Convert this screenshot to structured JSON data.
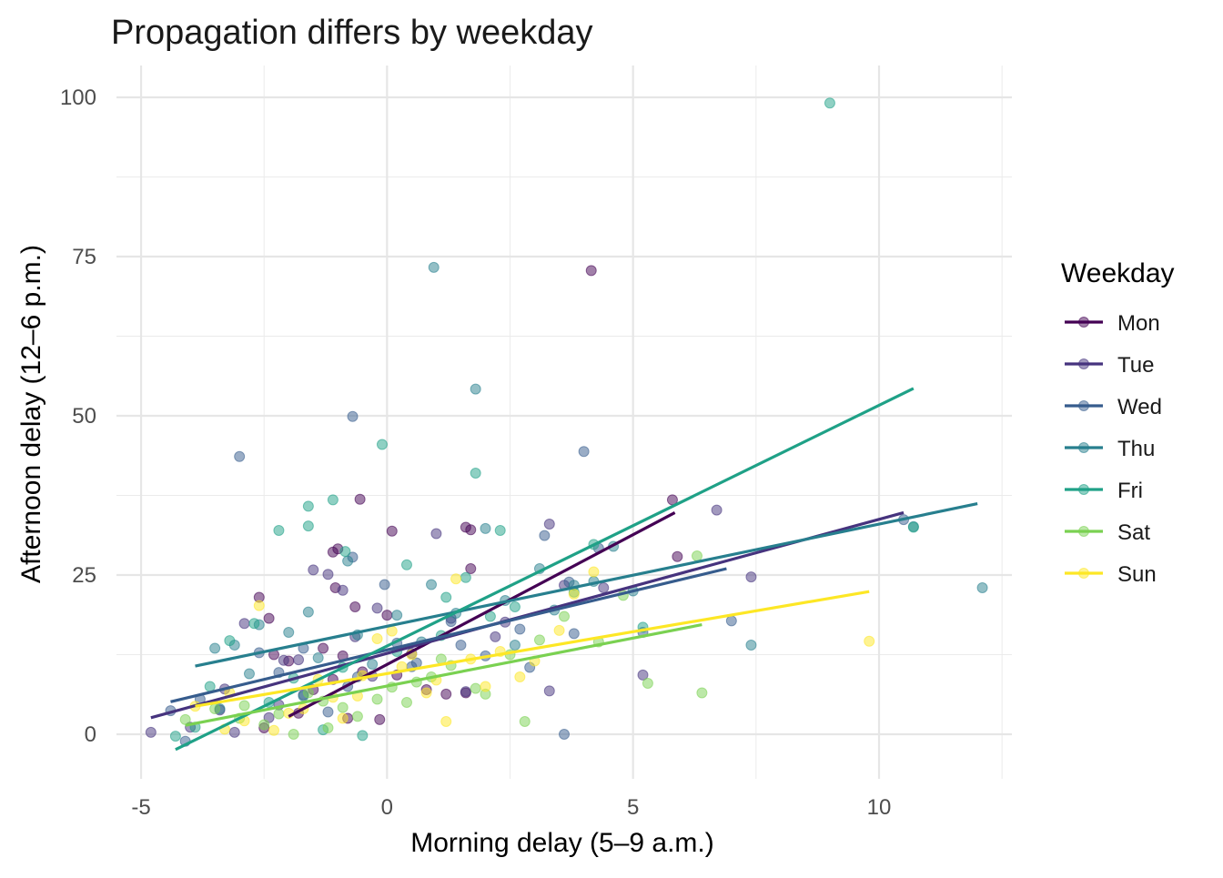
{
  "chart_data": {
    "type": "scatter",
    "title": "Propagation differs by weekday",
    "xlabel": "Morning delay (5–9 a.m.)",
    "ylabel": "Afternoon delay (12–6 p.m.)",
    "xlim": [
      -5.5,
      12.7
    ],
    "ylim": [
      -7,
      105
    ],
    "x_ticks": [
      -5,
      0,
      5,
      10
    ],
    "x_tick_labels": [
      "-5",
      "0",
      "5",
      "10"
    ],
    "y_ticks": [
      0,
      25,
      50,
      75,
      100
    ],
    "y_tick_labels": [
      "0",
      "25",
      "50",
      "75",
      "100"
    ],
    "grid": true,
    "legend": {
      "title": "Weekday",
      "position": "right"
    },
    "series": [
      {
        "name": "Mon",
        "color": "#440154",
        "fit": {
          "x": [
            -2.0,
            5.85
          ],
          "y": [
            2.8,
            34.8
          ]
        },
        "points": [
          [
            4.15,
            72.8
          ],
          [
            5.8,
            36.8
          ],
          [
            -0.55,
            36.9
          ],
          [
            5.9,
            27.9
          ],
          [
            1.6,
            32.5
          ],
          [
            1.7,
            32.1
          ],
          [
            1.7,
            26.0
          ],
          [
            0.1,
            31.9
          ],
          [
            -1.0,
            29.1
          ],
          [
            -1.1,
            28.6
          ],
          [
            -1.05,
            23.0
          ],
          [
            -0.65,
            20.0
          ],
          [
            -2.6,
            21.5
          ],
          [
            -2.4,
            18.2
          ],
          [
            -2.0,
            11.5
          ],
          [
            -2.3,
            12.5
          ],
          [
            -1.3,
            13.5
          ],
          [
            -1.1,
            8.6
          ],
          [
            -0.9,
            12.3
          ],
          [
            -0.5,
            9.8
          ],
          [
            0.0,
            18.7
          ],
          [
            0.2,
            9.3
          ],
          [
            0.8,
            7.0
          ],
          [
            1.2,
            6.3
          ],
          [
            1.6,
            6.5
          ],
          [
            -1.5,
            7.0
          ],
          [
            -1.8,
            3.3
          ],
          [
            -2.5,
            1.0
          ],
          [
            -0.8,
            2.5
          ],
          [
            -0.15,
            2.3
          ]
        ]
      },
      {
        "name": "Tue",
        "color": "#46337e",
        "fit": {
          "x": [
            -4.8,
            10.5
          ],
          "y": [
            2.6,
            34.8
          ]
        },
        "points": [
          [
            -4.8,
            0.3
          ],
          [
            -4.0,
            1.1
          ],
          [
            -3.4,
            3.8
          ],
          [
            -3.3,
            7.1
          ],
          [
            -2.9,
            17.4
          ],
          [
            -2.4,
            2.6
          ],
          [
            -2.2,
            4.6
          ],
          [
            -2.1,
            11.6
          ],
          [
            -1.8,
            11.7
          ],
          [
            -1.5,
            25.8
          ],
          [
            -1.2,
            25.1
          ],
          [
            -0.9,
            22.6
          ],
          [
            -0.65,
            15.3
          ],
          [
            -0.2,
            19.8
          ],
          [
            0.5,
            12.7
          ],
          [
            1.0,
            31.5
          ],
          [
            1.3,
            18.2
          ],
          [
            1.6,
            6.7
          ],
          [
            2.2,
            15.3
          ],
          [
            2.4,
            17.6
          ],
          [
            3.3,
            33.0
          ],
          [
            3.6,
            23.4
          ],
          [
            3.3,
            6.8
          ],
          [
            4.4,
            23.0
          ],
          [
            5.2,
            9.3
          ],
          [
            6.7,
            35.2
          ],
          [
            7.4,
            24.7
          ],
          [
            -3.1,
            0.3
          ],
          [
            -1.7,
            6.2
          ],
          [
            -0.3,
            9.1
          ]
        ]
      },
      {
        "name": "Wed",
        "color": "#365c8d",
        "fit": {
          "x": [
            -4.4,
            6.9
          ],
          "y": [
            5.1,
            26.0
          ]
        },
        "points": [
          [
            -4.4,
            3.7
          ],
          [
            -3.8,
            5.5
          ],
          [
            -3.0,
            43.6
          ],
          [
            -2.6,
            12.8
          ],
          [
            -2.2,
            9.7
          ],
          [
            -1.7,
            13.5
          ],
          [
            -0.7,
            49.9
          ],
          [
            -0.7,
            27.8
          ],
          [
            -0.05,
            23.5
          ],
          [
            -0.6,
            9.0
          ],
          [
            0.2,
            14.3
          ],
          [
            0.5,
            10.6
          ],
          [
            1.3,
            17.7
          ],
          [
            2.0,
            12.3
          ],
          [
            2.7,
            16.5
          ],
          [
            3.2,
            31.2
          ],
          [
            3.7,
            23.9
          ],
          [
            3.8,
            15.8
          ],
          [
            4.0,
            44.4
          ],
          [
            4.3,
            29.2
          ],
          [
            5.2,
            16.0
          ],
          [
            7.0,
            17.8
          ],
          [
            10.5,
            33.7
          ],
          [
            -4.1,
            -1.1
          ],
          [
            -1.2,
            3.5
          ],
          [
            -0.8,
            7.5
          ],
          [
            0.6,
            11.2
          ],
          [
            1.5,
            14.0
          ],
          [
            2.9,
            10.5
          ],
          [
            3.6,
            0.0
          ]
        ]
      },
      {
        "name": "Thu",
        "color": "#277f8e",
        "fit": {
          "x": [
            -3.9,
            12.0
          ],
          "y": [
            10.7,
            36.2
          ]
        },
        "points": [
          [
            -3.5,
            13.5
          ],
          [
            -3.1,
            14.0
          ],
          [
            -2.6,
            17.2
          ],
          [
            -2.0,
            16.0
          ],
          [
            -1.6,
            19.2
          ],
          [
            -0.8,
            27.2
          ],
          [
            -0.6,
            15.6
          ],
          [
            0.2,
            18.7
          ],
          [
            0.9,
            23.5
          ],
          [
            0.95,
            73.3
          ],
          [
            1.8,
            54.2
          ],
          [
            2.0,
            32.3
          ],
          [
            2.6,
            14.0
          ],
          [
            3.1,
            26.0
          ],
          [
            3.8,
            23.4
          ],
          [
            4.6,
            29.5
          ],
          [
            5.0,
            22.5
          ],
          [
            7.4,
            14.0
          ],
          [
            10.7,
            32.6
          ],
          [
            12.1,
            23.0
          ],
          [
            -3.4,
            4.0
          ],
          [
            -2.8,
            9.5
          ],
          [
            -1.4,
            12.0
          ],
          [
            -0.3,
            11.0
          ],
          [
            0.7,
            14.5
          ],
          [
            1.4,
            19.0
          ],
          [
            2.4,
            21.0
          ],
          [
            3.4,
            19.5
          ],
          [
            4.2,
            24.0
          ],
          [
            -1.7,
            6.0
          ]
        ]
      },
      {
        "name": "Fri",
        "color": "#1fa187",
        "fit": {
          "x": [
            -4.3,
            10.7
          ],
          "y": [
            -2.4,
            54.3
          ]
        },
        "points": [
          [
            -4.3,
            -0.3
          ],
          [
            -3.9,
            1.1
          ],
          [
            -3.6,
            7.5
          ],
          [
            -3.2,
            14.7
          ],
          [
            -2.7,
            17.4
          ],
          [
            -2.2,
            32.0
          ],
          [
            -1.6,
            35.8
          ],
          [
            -1.6,
            32.7
          ],
          [
            -1.1,
            36.8
          ],
          [
            -0.85,
            28.7
          ],
          [
            -0.1,
            45.5
          ],
          [
            0.4,
            26.6
          ],
          [
            1.2,
            21.5
          ],
          [
            1.6,
            24.6
          ],
          [
            1.8,
            41.0
          ],
          [
            2.3,
            32.0
          ],
          [
            2.6,
            20.0
          ],
          [
            3.8,
            22.3
          ],
          [
            4.2,
            29.8
          ],
          [
            5.2,
            16.8
          ],
          [
            9.0,
            99.1
          ],
          [
            10.7,
            32.5
          ],
          [
            -2.4,
            5.0
          ],
          [
            -1.9,
            8.8
          ],
          [
            -0.9,
            10.5
          ],
          [
            0.2,
            13.0
          ],
          [
            1.1,
            15.5
          ],
          [
            2.1,
            18.5
          ],
          [
            -0.5,
            -0.2
          ],
          [
            -1.3,
            0.7
          ]
        ]
      },
      {
        "name": "Sat",
        "color": "#7ad151",
        "fit": {
          "x": [
            -4.1,
            6.4
          ],
          "y": [
            1.4,
            17.2
          ]
        },
        "points": [
          [
            -4.1,
            2.3
          ],
          [
            -3.5,
            4.0
          ],
          [
            -3.0,
            2.5
          ],
          [
            -2.5,
            1.5
          ],
          [
            -1.9,
            0.0
          ],
          [
            -1.3,
            5.2
          ],
          [
            -0.6,
            2.8
          ],
          [
            -0.2,
            5.5
          ],
          [
            0.4,
            5.0
          ],
          [
            0.9,
            9.0
          ],
          [
            1.1,
            11.8
          ],
          [
            1.8,
            7.2
          ],
          [
            2.0,
            6.3
          ],
          [
            2.8,
            2.0
          ],
          [
            3.6,
            18.5
          ],
          [
            4.3,
            14.5
          ],
          [
            5.3,
            8.0
          ],
          [
            6.3,
            28.0
          ],
          [
            6.4,
            6.5
          ],
          [
            -2.9,
            4.5
          ],
          [
            -2.2,
            3.2
          ],
          [
            -1.6,
            6.5
          ],
          [
            -0.9,
            4.2
          ],
          [
            0.1,
            7.4
          ],
          [
            0.6,
            8.2
          ],
          [
            1.3,
            10.8
          ],
          [
            2.5,
            12.5
          ],
          [
            3.1,
            14.8
          ],
          [
            4.8,
            21.8
          ],
          [
            -1.2,
            1.0
          ]
        ]
      },
      {
        "name": "Sun",
        "color": "#fde725",
        "fit": {
          "x": [
            -3.9,
            9.8
          ],
          "y": [
            4.4,
            22.4
          ]
        },
        "points": [
          [
            -3.9,
            4.4
          ],
          [
            -3.2,
            6.5
          ],
          [
            -2.6,
            20.2
          ],
          [
            -2.3,
            0.6
          ],
          [
            -1.7,
            4.0
          ],
          [
            -1.4,
            8.6
          ],
          [
            -0.9,
            2.5
          ],
          [
            -0.2,
            15.0
          ],
          [
            0.1,
            16.2
          ],
          [
            0.3,
            10.6
          ],
          [
            0.8,
            6.5
          ],
          [
            1.2,
            2.0
          ],
          [
            1.4,
            24.4
          ],
          [
            1.7,
            11.8
          ],
          [
            2.0,
            7.5
          ],
          [
            2.7,
            9.0
          ],
          [
            3.5,
            16.3
          ],
          [
            4.2,
            25.5
          ],
          [
            9.8,
            14.6
          ],
          [
            -2.9,
            2.1
          ],
          [
            -2.0,
            3.3
          ],
          [
            -1.1,
            5.8
          ],
          [
            -0.5,
            9.2
          ],
          [
            0.5,
            12.5
          ],
          [
            1.0,
            8.5
          ],
          [
            2.3,
            13.0
          ],
          [
            3.0,
            11.5
          ],
          [
            3.8,
            22.0
          ],
          [
            -3.3,
            0.8
          ],
          [
            -0.6,
            6.0
          ]
        ]
      }
    ]
  }
}
